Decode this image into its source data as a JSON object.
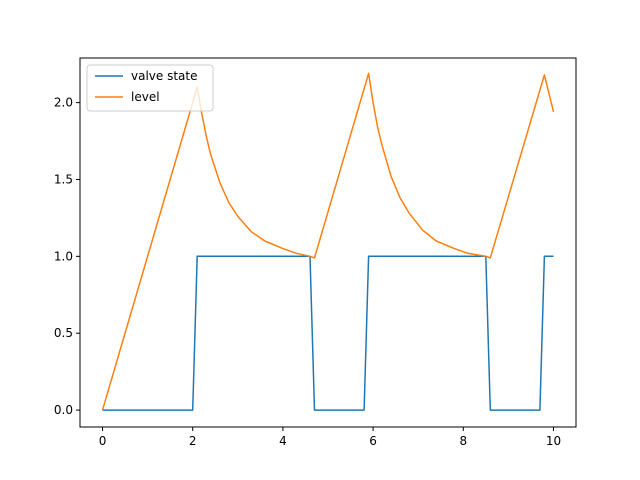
{
  "chart_data": {
    "type": "line",
    "xlim": [
      -0.5,
      10.5
    ],
    "ylim": [
      -0.11,
      2.29
    ],
    "x_ticks": [
      0,
      2,
      4,
      6,
      8,
      10
    ],
    "x_tick_labels": [
      "0",
      "2",
      "4",
      "6",
      "8",
      "10"
    ],
    "y_ticks": [
      0.0,
      0.5,
      1.0,
      1.5,
      2.0
    ],
    "y_tick_labels": [
      "0.0",
      "0.5",
      "1.0",
      "1.5",
      "2.0"
    ],
    "grid": false,
    "legend_position": "top-left",
    "series": [
      {
        "name": "valve state",
        "color": "#1f77b4",
        "x": [
          0,
          2.0,
          2.1,
          4.6,
          4.7,
          5.8,
          5.9,
          8.5,
          8.6,
          9.7,
          9.8,
          10.0
        ],
        "y": [
          0,
          0,
          1,
          1,
          0,
          0,
          1,
          1,
          0,
          0,
          1,
          1
        ]
      },
      {
        "name": "level",
        "color": "#ff7f0e",
        "x": [
          0,
          2.1,
          2.2,
          2.3,
          2.4,
          2.6,
          2.8,
          3.0,
          3.3,
          3.6,
          4.0,
          4.3,
          4.6,
          4.7,
          5.9,
          6.0,
          6.1,
          6.2,
          6.4,
          6.6,
          6.8,
          7.1,
          7.4,
          7.8,
          8.1,
          8.5,
          8.6,
          9.8,
          10.0
        ],
        "y": [
          0,
          2.1,
          1.93,
          1.78,
          1.66,
          1.48,
          1.35,
          1.26,
          1.16,
          1.1,
          1.05,
          1.02,
          1.0,
          0.99,
          2.19,
          2.0,
          1.84,
          1.72,
          1.52,
          1.38,
          1.28,
          1.17,
          1.1,
          1.05,
          1.02,
          1.0,
          0.99,
          2.18,
          1.94
        ]
      }
    ]
  }
}
